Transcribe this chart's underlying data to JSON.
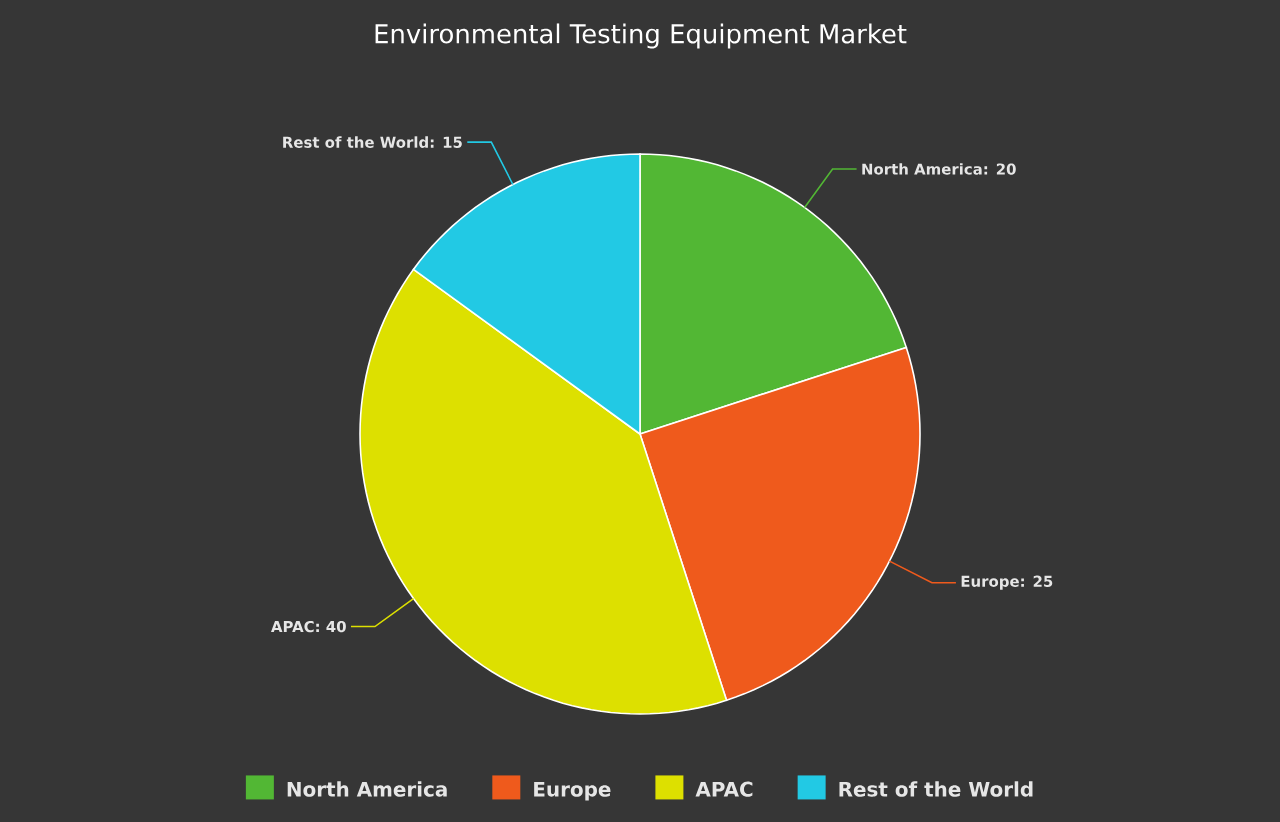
{
  "chart_data": {
    "type": "pie",
    "title": "Environmental Testing Equipment Market",
    "categories": [
      "North America",
      "Europe",
      "APAC",
      "Rest of the World"
    ],
    "values": [
      20,
      25,
      40,
      15
    ],
    "value_labels": [
      ": 20",
      ": 25",
      ": 40",
      ": 15"
    ],
    "colors": [
      "#52b734",
      "#ef5a1c",
      "#dde000",
      "#22c9e4"
    ],
    "legend": "bottom"
  }
}
